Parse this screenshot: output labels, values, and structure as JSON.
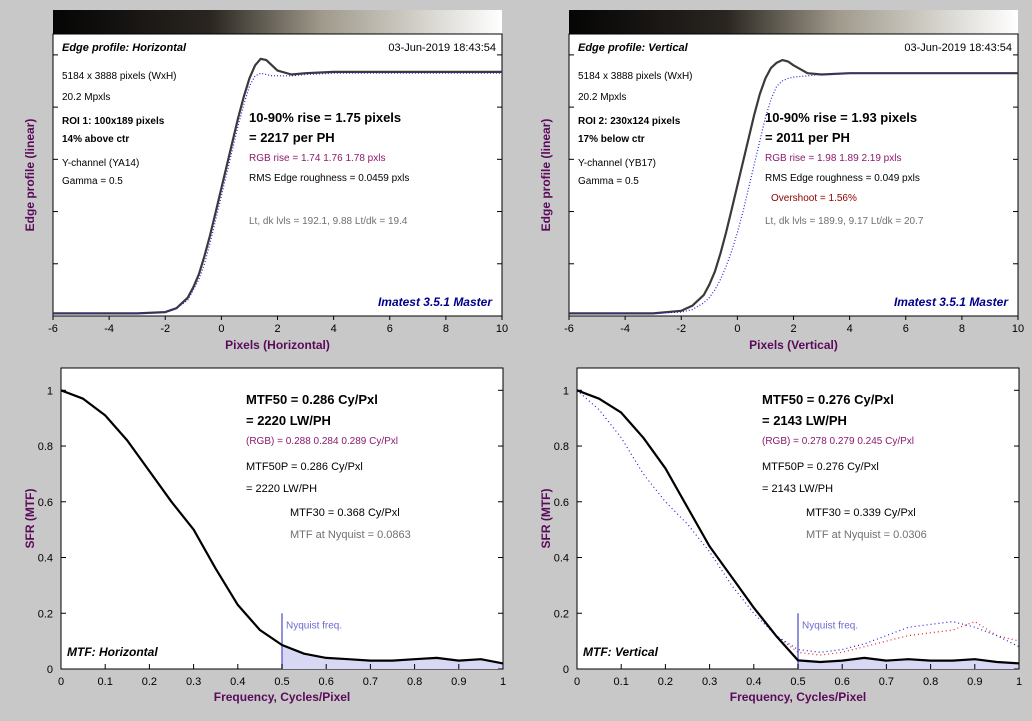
{
  "colors": {
    "background": "#c8c8c8",
    "plot_bg": "#ffffff",
    "axis_label": "#5a0a5a",
    "rgb_text": "#8b1a6b",
    "overshoot_text": "#8b0000",
    "brand": "#00008b",
    "nyquist": "#6a6ad0",
    "nyquist_fill": "#d8d8f4",
    "curve": "#3a3a3a",
    "red_channel": "#e02020",
    "blue_channel": "#2020e0",
    "gray_text": "#707070"
  },
  "edge_plots": [
    {
      "title": "Edge profile: Horizontal",
      "timestamp": "03-Jun-2019 18:43:54",
      "info": [
        "5184 x 3888 pixels (WxH)",
        "20.2 Mpxls"
      ],
      "roi": [
        "ROI 1:  100x189 pixels",
        "14% above ctr"
      ],
      "channel": [
        "Y-channel  (YA14)",
        "Gamma = 0.5"
      ],
      "rise": "10-90% rise = 1.75 pixels",
      "per_ph": "= 2217 per PH",
      "rgb_rise": "RGB rise = 1.74  1.76  1.78 pxls",
      "rms": "RMS Edge roughness = 0.0459 pxls",
      "overshoot": "",
      "levels": "Lt, dk lvls = 192.1, 9.88   Lt/dk = 19.4",
      "brand": "Imatest 3.5.1 Master",
      "xlabel": "Pixels (Horizontal)",
      "ylabel": "Edge profile (linear)",
      "x_ticks": [
        "-6",
        "-4",
        "-2",
        "0",
        "2",
        "4",
        "6",
        "8",
        "10"
      ],
      "chart_data": {
        "type": "line",
        "xlim": [
          -6,
          10
        ],
        "ylim": [
          0,
          1.08
        ],
        "x": [
          -6,
          -5,
          -4,
          -3,
          -2,
          -1.6,
          -1.2,
          -1,
          -0.8,
          -0.6,
          -0.4,
          -0.2,
          0,
          0.2,
          0.4,
          0.6,
          0.8,
          1,
          1.2,
          1.4,
          1.6,
          1.8,
          2,
          2.5,
          3,
          4,
          5,
          6,
          7,
          8,
          9,
          10
        ],
        "series": [
          {
            "values": [
              0.01,
              0.01,
              0.01,
              0.01,
              0.015,
              0.03,
              0.07,
              0.11,
              0.16,
              0.23,
              0.31,
              0.4,
              0.49,
              0.58,
              0.67,
              0.76,
              0.84,
              0.91,
              0.96,
              0.985,
              0.98,
              0.96,
              0.94,
              0.925,
              0.93,
              0.935,
              0.935,
              0.935,
              0.935,
              0.935,
              0.935,
              0.935
            ]
          },
          {
            "values": [
              0.01,
              0.01,
              0.01,
              0.01,
              0.015,
              0.03,
              0.06,
              0.1,
              0.14,
              0.2,
              0.28,
              0.37,
              0.46,
              0.55,
              0.64,
              0.73,
              0.81,
              0.88,
              0.92,
              0.93,
              0.925,
              0.92,
              0.92,
              0.92,
              0.925,
              0.93,
              0.93,
              0.93,
              0.93,
              0.93,
              0.93,
              0.93
            ]
          }
        ]
      }
    },
    {
      "title": "Edge profile: Vertical",
      "timestamp": "03-Jun-2019 18:43:54",
      "info": [
        "5184 x 3888 pixels (WxH)",
        "20.2 Mpxls"
      ],
      "roi": [
        "ROI 2:  230x124 pixels",
        "17% below ctr"
      ],
      "channel": [
        "Y-channel  (YB17)",
        "Gamma = 0.5"
      ],
      "rise": "10-90% rise = 1.93 pixels",
      "per_ph": "= 2011 per PH",
      "rgb_rise": "RGB rise = 1.98  1.89  2.19 pxls",
      "rms": "RMS Edge roughness = 0.049 pxls",
      "overshoot": "Overshoot = 1.56%",
      "levels": "Lt, dk lvls = 189.9, 9.17   Lt/dk = 20.7",
      "brand": "Imatest 3.5.1 Master",
      "xlabel": "Pixels (Vertical)",
      "ylabel": "Edge profile (linear)",
      "x_ticks": [
        "-6",
        "-4",
        "-2",
        "0",
        "2",
        "4",
        "6",
        "8",
        "10"
      ],
      "chart_data": {
        "type": "line",
        "xlim": [
          -6,
          10
        ],
        "ylim": [
          0,
          1.08
        ],
        "x": [
          -6,
          -5,
          -4,
          -3,
          -2,
          -1.6,
          -1.2,
          -1,
          -0.8,
          -0.6,
          -0.4,
          -0.2,
          0,
          0.2,
          0.4,
          0.6,
          0.8,
          1,
          1.2,
          1.4,
          1.6,
          1.8,
          2,
          2.5,
          3,
          4,
          5,
          6,
          7,
          8,
          9,
          10
        ],
        "series": [
          {
            "values": [
              0.01,
              0.01,
              0.01,
              0.01,
              0.02,
              0.04,
              0.08,
              0.12,
              0.17,
              0.24,
              0.32,
              0.41,
              0.5,
              0.59,
              0.68,
              0.77,
              0.85,
              0.91,
              0.95,
              0.97,
              0.98,
              0.975,
              0.96,
              0.93,
              0.925,
              0.93,
              0.93,
              0.93,
              0.93,
              0.93,
              0.93,
              0.93
            ]
          },
          {
            "values": [
              0.01,
              0.01,
              0.01,
              0.01,
              0.015,
              0.025,
              0.05,
              0.07,
              0.1,
              0.14,
              0.19,
              0.25,
              0.32,
              0.4,
              0.49,
              0.58,
              0.67,
              0.76,
              0.83,
              0.88,
              0.9,
              0.91,
              0.915,
              0.92,
              0.925,
              0.93,
              0.93,
              0.93,
              0.93,
              0.93,
              0.93,
              0.93
            ]
          }
        ]
      }
    }
  ],
  "mtf_plots": [
    {
      "mtf50": "MTF50 = 0.286 Cy/Pxl",
      "lwph": "= 2220 LW/PH",
      "rgb": "(RGB) = 0.288  0.284  0.289 Cy/Pxl",
      "mtf50p": "MTF50P = 0.286 Cy/Pxl",
      "mtf50p_lwph": "= 2220 LW/PH",
      "mtf30": "MTF30 = 0.368 Cy/Pxl",
      "nyq": "MTF at Nyquist = 0.0863",
      "label": "MTF: Horizontal",
      "nyquist_label": "Nyquist freq.",
      "xlabel": "Frequency, Cycles/Pixel",
      "ylabel": "SFR (MTF)",
      "x_ticks": [
        "0",
        "0.1",
        "0.2",
        "0.3",
        "0.4",
        "0.5",
        "0.6",
        "0.7",
        "0.8",
        "0.9",
        "1"
      ],
      "y_ticks": [
        "0",
        "0.2",
        "0.4",
        "0.6",
        "0.8",
        "1"
      ],
      "chart_data": {
        "type": "line",
        "xlim": [
          0,
          1
        ],
        "ylim": [
          0,
          1.08
        ],
        "nyquist": 0.5,
        "x": [
          0,
          0.05,
          0.1,
          0.15,
          0.2,
          0.25,
          0.3,
          0.35,
          0.4,
          0.45,
          0.5,
          0.55,
          0.6,
          0.65,
          0.7,
          0.75,
          0.8,
          0.85,
          0.9,
          0.95,
          1.0
        ],
        "series": [
          {
            "values": [
              1.0,
              0.97,
              0.91,
              0.82,
              0.71,
              0.6,
              0.5,
              0.36,
              0.23,
              0.14,
              0.086,
              0.055,
              0.04,
              0.035,
              0.03,
              0.03,
              0.035,
              0.04,
              0.03,
              0.035,
              0.02
            ]
          },
          {
            "values": [
              1.0,
              0.97,
              0.91,
              0.82,
              0.71,
              0.6,
              0.5,
              0.36,
              0.23,
              0.14,
              0.086,
              0.055,
              0.04,
              0.035,
              0.03,
              0.03,
              0.035,
              0.04,
              0.03,
              0.035,
              0.02
            ]
          },
          {
            "values": [
              1.0,
              0.97,
              0.91,
              0.82,
              0.71,
              0.6,
              0.5,
              0.36,
              0.23,
              0.14,
              0.086,
              0.055,
              0.04,
              0.035,
              0.03,
              0.03,
              0.035,
              0.04,
              0.03,
              0.035,
              0.02
            ]
          }
        ]
      }
    },
    {
      "mtf50": "MTF50 = 0.276 Cy/Pxl",
      "lwph": "= 2143 LW/PH",
      "rgb": "(RGB) = 0.278  0.279  0.245 Cy/Pxl",
      "mtf50p": "MTF50P = 0.276 Cy/Pxl",
      "mtf50p_lwph": "= 2143 LW/PH",
      "mtf30": "MTF30 = 0.339 Cy/Pxl",
      "nyq": "MTF at Nyquist = 0.0306",
      "label": "MTF: Vertical",
      "nyquist_label": "Nyquist freq.",
      "xlabel": "Frequency, Cycles/Pixel",
      "ylabel": "SFR (MTF)",
      "x_ticks": [
        "0",
        "0.1",
        "0.2",
        "0.3",
        "0.4",
        "0.5",
        "0.6",
        "0.7",
        "0.8",
        "0.9",
        "1"
      ],
      "y_ticks": [
        "0",
        "0.2",
        "0.4",
        "0.6",
        "0.8",
        "1"
      ],
      "chart_data": {
        "type": "line",
        "xlim": [
          0,
          1
        ],
        "ylim": [
          0,
          1.08
        ],
        "nyquist": 0.5,
        "x": [
          0,
          0.05,
          0.1,
          0.15,
          0.2,
          0.25,
          0.3,
          0.35,
          0.4,
          0.45,
          0.5,
          0.55,
          0.6,
          0.65,
          0.7,
          0.75,
          0.8,
          0.85,
          0.9,
          0.95,
          1.0
        ],
        "series": [
          {
            "values": [
              1.0,
              0.97,
              0.92,
              0.83,
              0.72,
              0.58,
              0.44,
              0.33,
              0.22,
              0.12,
              0.031,
              0.025,
              0.03,
              0.04,
              0.03,
              0.035,
              0.03,
              0.03,
              0.035,
              0.025,
              0.02
            ]
          },
          {
            "values": [
              1.0,
              0.97,
              0.92,
              0.83,
              0.72,
              0.58,
              0.44,
              0.33,
              0.22,
              0.12,
              0.06,
              0.05,
              0.06,
              0.08,
              0.1,
              0.12,
              0.13,
              0.14,
              0.17,
              0.12,
              0.1
            ]
          },
          {
            "values": [
              1.0,
              0.93,
              0.83,
              0.7,
              0.6,
              0.52,
              0.42,
              0.3,
              0.2,
              0.12,
              0.07,
              0.06,
              0.07,
              0.09,
              0.12,
              0.15,
              0.16,
              0.17,
              0.15,
              0.12,
              0.08
            ]
          }
        ]
      }
    }
  ]
}
